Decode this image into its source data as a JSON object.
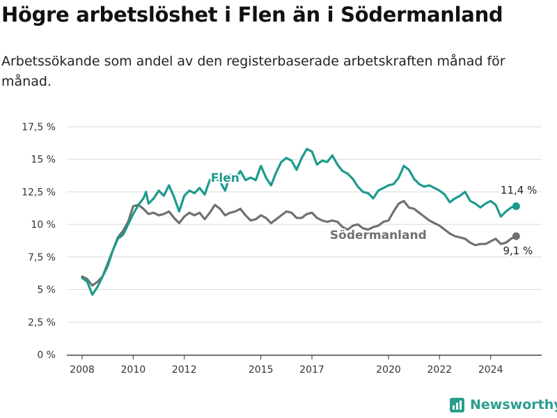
{
  "header": {
    "title": "Högre arbetslöshet i Flen än i Södermanland",
    "subtitle": "Arbetssökande som andel av den registerbaserade arbetskraften månad för månad."
  },
  "brand": {
    "name": "Newsworthy",
    "icon": "bar-chart-icon",
    "color": "#2a9d8f"
  },
  "chart_data": {
    "type": "line",
    "title": "",
    "xlabel": "",
    "ylabel": "",
    "ylim": [
      0,
      17.5
    ],
    "xlim": [
      2007.4,
      2026.0
    ],
    "grid": true,
    "y_ticks": [
      {
        "value": 0,
        "label": "0 %"
      },
      {
        "value": 2.5,
        "label": "2,5 %"
      },
      {
        "value": 5,
        "label": "5 %"
      },
      {
        "value": 7.5,
        "label": "7,5 %"
      },
      {
        "value": 10,
        "label": "10 %"
      },
      {
        "value": 12.5,
        "label": "12,5 %"
      },
      {
        "value": 15,
        "label": "15 %"
      },
      {
        "value": 17.5,
        "label": "17,5 %"
      }
    ],
    "x_ticks": [
      {
        "value": 2008,
        "label": "2008"
      },
      {
        "value": 2010,
        "label": "2010"
      },
      {
        "value": 2012,
        "label": "2012"
      },
      {
        "value": 2015,
        "label": "2015"
      },
      {
        "value": 2017,
        "label": "2017"
      },
      {
        "value": 2020,
        "label": "2020"
      },
      {
        "value": 2022,
        "label": "2022"
      },
      {
        "value": 2024,
        "label": "2024"
      }
    ],
    "series": [
      {
        "name": "Flen",
        "color": "#1a9a8c",
        "end_label": "11,4 %",
        "points": [
          [
            2008.0,
            5.9
          ],
          [
            2008.2,
            5.6
          ],
          [
            2008.4,
            4.6
          ],
          [
            2008.6,
            5.2
          ],
          [
            2008.8,
            6.0
          ],
          [
            2009.0,
            6.8
          ],
          [
            2009.2,
            8.0
          ],
          [
            2009.4,
            8.9
          ],
          [
            2009.6,
            9.2
          ],
          [
            2009.8,
            10.0
          ],
          [
            2010.0,
            10.8
          ],
          [
            2010.2,
            11.5
          ],
          [
            2010.4,
            12.0
          ],
          [
            2010.5,
            12.5
          ],
          [
            2010.6,
            11.6
          ],
          [
            2010.8,
            12.0
          ],
          [
            2011.0,
            12.6
          ],
          [
            2011.2,
            12.2
          ],
          [
            2011.4,
            13.0
          ],
          [
            2011.6,
            12.1
          ],
          [
            2011.8,
            11.0
          ],
          [
            2012.0,
            12.2
          ],
          [
            2012.2,
            12.6
          ],
          [
            2012.4,
            12.4
          ],
          [
            2012.6,
            12.8
          ],
          [
            2012.8,
            12.3
          ],
          [
            2013.0,
            13.4
          ],
          [
            2013.2,
            13.6
          ],
          [
            2013.4,
            13.3
          ],
          [
            2013.6,
            12.6
          ],
          [
            2013.8,
            13.8
          ],
          [
            2014.0,
            13.5
          ],
          [
            2014.2,
            14.1
          ],
          [
            2014.4,
            13.4
          ],
          [
            2014.6,
            13.6
          ],
          [
            2014.8,
            13.4
          ],
          [
            2015.0,
            14.5
          ],
          [
            2015.2,
            13.6
          ],
          [
            2015.4,
            13.0
          ],
          [
            2015.6,
            14.0
          ],
          [
            2015.8,
            14.8
          ],
          [
            2016.0,
            15.1
          ],
          [
            2016.2,
            14.9
          ],
          [
            2016.4,
            14.2
          ],
          [
            2016.6,
            15.1
          ],
          [
            2016.8,
            15.8
          ],
          [
            2017.0,
            15.6
          ],
          [
            2017.2,
            14.6
          ],
          [
            2017.4,
            14.9
          ],
          [
            2017.6,
            14.8
          ],
          [
            2017.8,
            15.3
          ],
          [
            2018.0,
            14.6
          ],
          [
            2018.2,
            14.1
          ],
          [
            2018.4,
            13.9
          ],
          [
            2018.6,
            13.5
          ],
          [
            2018.8,
            12.9
          ],
          [
            2019.0,
            12.5
          ],
          [
            2019.2,
            12.4
          ],
          [
            2019.4,
            12.0
          ],
          [
            2019.6,
            12.6
          ],
          [
            2019.8,
            12.8
          ],
          [
            2020.0,
            13.0
          ],
          [
            2020.2,
            13.1
          ],
          [
            2020.4,
            13.6
          ],
          [
            2020.6,
            14.5
          ],
          [
            2020.8,
            14.2
          ],
          [
            2021.0,
            13.5
          ],
          [
            2021.2,
            13.1
          ],
          [
            2021.4,
            12.9
          ],
          [
            2021.6,
            13.0
          ],
          [
            2021.8,
            12.8
          ],
          [
            2022.0,
            12.6
          ],
          [
            2022.2,
            12.3
          ],
          [
            2022.4,
            11.7
          ],
          [
            2022.6,
            12.0
          ],
          [
            2022.8,
            12.2
          ],
          [
            2023.0,
            12.5
          ],
          [
            2023.2,
            11.8
          ],
          [
            2023.4,
            11.6
          ],
          [
            2023.6,
            11.3
          ],
          [
            2023.8,
            11.6
          ],
          [
            2024.0,
            11.8
          ],
          [
            2024.2,
            11.5
          ],
          [
            2024.4,
            10.6
          ],
          [
            2024.6,
            11.0
          ],
          [
            2024.8,
            11.3
          ],
          [
            2025.0,
            11.4
          ]
        ]
      },
      {
        "name": "Södermanland",
        "color": "#707070",
        "end_label": "9,1 %",
        "points": [
          [
            2008.0,
            6.0
          ],
          [
            2008.2,
            5.8
          ],
          [
            2008.4,
            5.3
          ],
          [
            2008.6,
            5.6
          ],
          [
            2008.8,
            6.0
          ],
          [
            2009.0,
            7.0
          ],
          [
            2009.2,
            8.0
          ],
          [
            2009.4,
            9.0
          ],
          [
            2009.6,
            9.5
          ],
          [
            2009.8,
            10.2
          ],
          [
            2010.0,
            11.4
          ],
          [
            2010.2,
            11.5
          ],
          [
            2010.4,
            11.2
          ],
          [
            2010.6,
            10.8
          ],
          [
            2010.8,
            10.9
          ],
          [
            2011.0,
            10.7
          ],
          [
            2011.2,
            10.8
          ],
          [
            2011.4,
            11.0
          ],
          [
            2011.6,
            10.5
          ],
          [
            2011.8,
            10.1
          ],
          [
            2012.0,
            10.6
          ],
          [
            2012.2,
            10.9
          ],
          [
            2012.4,
            10.7
          ],
          [
            2012.6,
            10.9
          ],
          [
            2012.8,
            10.4
          ],
          [
            2013.0,
            10.9
          ],
          [
            2013.2,
            11.5
          ],
          [
            2013.4,
            11.2
          ],
          [
            2013.6,
            10.7
          ],
          [
            2013.8,
            10.9
          ],
          [
            2014.0,
            11.0
          ],
          [
            2014.2,
            11.2
          ],
          [
            2014.4,
            10.7
          ],
          [
            2014.6,
            10.3
          ],
          [
            2014.8,
            10.4
          ],
          [
            2015.0,
            10.7
          ],
          [
            2015.2,
            10.5
          ],
          [
            2015.4,
            10.1
          ],
          [
            2015.6,
            10.4
          ],
          [
            2015.8,
            10.7
          ],
          [
            2016.0,
            11.0
          ],
          [
            2016.2,
            10.9
          ],
          [
            2016.4,
            10.5
          ],
          [
            2016.6,
            10.5
          ],
          [
            2016.8,
            10.8
          ],
          [
            2017.0,
            10.9
          ],
          [
            2017.2,
            10.5
          ],
          [
            2017.4,
            10.3
          ],
          [
            2017.6,
            10.2
          ],
          [
            2017.8,
            10.3
          ],
          [
            2018.0,
            10.2
          ],
          [
            2018.2,
            9.8
          ],
          [
            2018.4,
            9.6
          ],
          [
            2018.6,
            9.9
          ],
          [
            2018.8,
            10.0
          ],
          [
            2019.0,
            9.7
          ],
          [
            2019.2,
            9.6
          ],
          [
            2019.4,
            9.8
          ],
          [
            2019.6,
            9.9
          ],
          [
            2019.8,
            10.2
          ],
          [
            2020.0,
            10.3
          ],
          [
            2020.2,
            11.0
          ],
          [
            2020.4,
            11.6
          ],
          [
            2020.6,
            11.8
          ],
          [
            2020.8,
            11.3
          ],
          [
            2021.0,
            11.2
          ],
          [
            2021.2,
            10.9
          ],
          [
            2021.4,
            10.6
          ],
          [
            2021.6,
            10.3
          ],
          [
            2021.8,
            10.1
          ],
          [
            2022.0,
            9.9
          ],
          [
            2022.2,
            9.6
          ],
          [
            2022.4,
            9.3
          ],
          [
            2022.6,
            9.1
          ],
          [
            2022.8,
            9.0
          ],
          [
            2023.0,
            8.9
          ],
          [
            2023.2,
            8.6
          ],
          [
            2023.4,
            8.4
          ],
          [
            2023.6,
            8.5
          ],
          [
            2023.8,
            8.5
          ],
          [
            2024.0,
            8.7
          ],
          [
            2024.2,
            8.9
          ],
          [
            2024.4,
            8.5
          ],
          [
            2024.6,
            8.6
          ],
          [
            2024.8,
            8.9
          ],
          [
            2025.0,
            9.1
          ]
        ]
      }
    ]
  }
}
